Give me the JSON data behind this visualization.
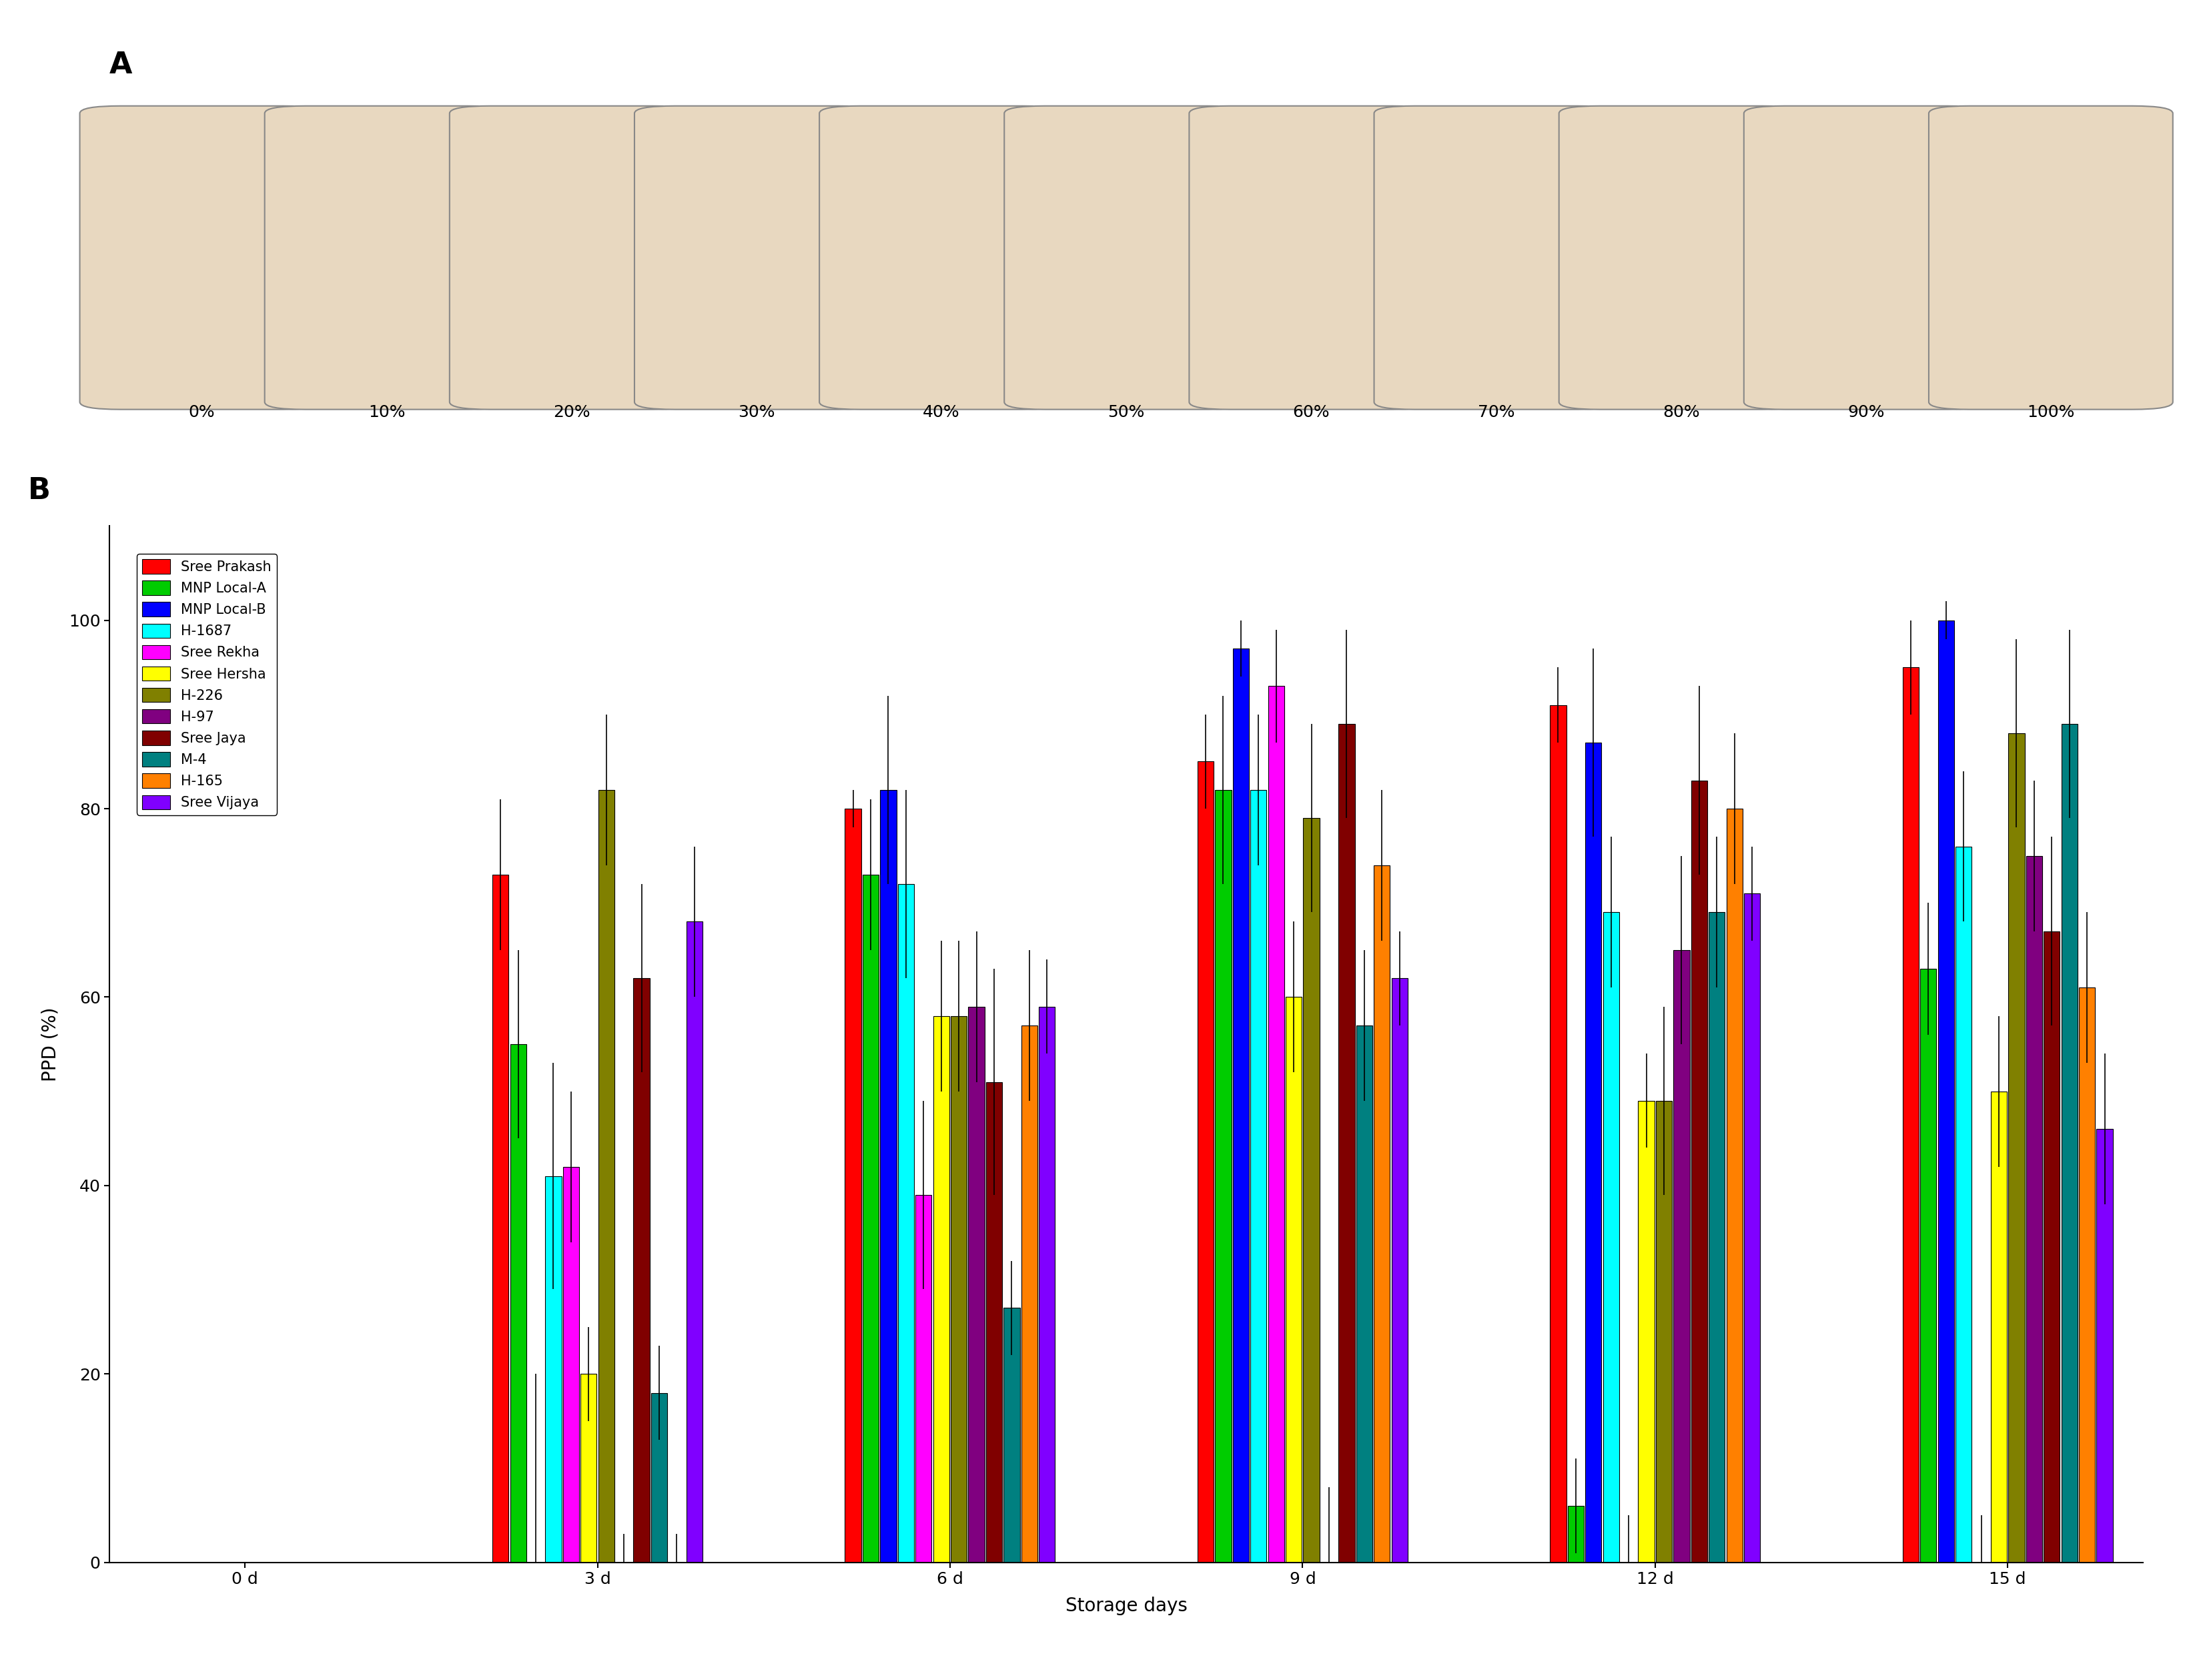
{
  "varieties": [
    "Sree Prakash",
    "MNP Local-A",
    "MNP Local-B",
    "H-1687",
    "Sree Rekha",
    "Sree Hersha",
    "H-226",
    "H-97",
    "Sree Jaya",
    "M-4",
    "H-165",
    "Sree Vijaya"
  ],
  "colors": [
    "#FF0000",
    "#00CC00",
    "#0000FF",
    "#00FFFF",
    "#FF00FF",
    "#FFFF00",
    "#808000",
    "#800080",
    "#800000",
    "#008080",
    "#FF8000",
    "#8000FF"
  ],
  "days": [
    0,
    3,
    6,
    9,
    12,
    15
  ],
  "day_labels": [
    "0 d",
    "3 d",
    "6 d",
    "9 d",
    "12 d",
    "15 d"
  ],
  "ppd_values": {
    "Sree Prakash": [
      0,
      73,
      80,
      85,
      91,
      95
    ],
    "MNP Local-A": [
      0,
      55,
      73,
      82,
      6,
      63
    ],
    "MNP Local-B": [
      0,
      0,
      82,
      97,
      87,
      100
    ],
    "H-1687": [
      0,
      41,
      72,
      82,
      69,
      76
    ],
    "Sree Rekha": [
      0,
      42,
      39,
      93,
      0,
      0
    ],
    "Sree Hersha": [
      0,
      20,
      58,
      60,
      49,
      50
    ],
    "H-226": [
      0,
      82,
      58,
      79,
      49,
      88
    ],
    "H-97": [
      0,
      0,
      59,
      0,
      65,
      75
    ],
    "Sree Jaya": [
      0,
      62,
      51,
      89,
      83,
      67
    ],
    "M-4": [
      0,
      18,
      27,
      57,
      69,
      89
    ],
    "H-165": [
      0,
      0,
      57,
      74,
      80,
      61
    ],
    "Sree Vijaya": [
      0,
      68,
      59,
      62,
      71,
      46
    ]
  },
  "error_values": {
    "Sree Prakash": [
      0,
      8,
      2,
      5,
      4,
      5
    ],
    "MNP Local-A": [
      0,
      10,
      8,
      10,
      5,
      7
    ],
    "MNP Local-B": [
      0,
      20,
      10,
      3,
      10,
      2
    ],
    "H-1687": [
      0,
      12,
      10,
      8,
      8,
      8
    ],
    "Sree Rekha": [
      0,
      8,
      10,
      6,
      5,
      5
    ],
    "Sree Hersha": [
      0,
      5,
      8,
      8,
      5,
      8
    ],
    "H-226": [
      0,
      8,
      8,
      10,
      10,
      10
    ],
    "H-97": [
      0,
      3,
      8,
      8,
      10,
      8
    ],
    "Sree Jaya": [
      0,
      10,
      12,
      10,
      10,
      10
    ],
    "M-4": [
      0,
      5,
      5,
      8,
      8,
      10
    ],
    "H-165": [
      0,
      3,
      8,
      8,
      8,
      8
    ],
    "Sree Vijaya": [
      0,
      8,
      5,
      5,
      5,
      8
    ]
  },
  "ylabel": "PPD (%)",
  "xlabel": "Storage days",
  "ylim": [
    0,
    110
  ],
  "yticks": [
    0,
    20,
    40,
    60,
    80,
    100
  ],
  "panel_a_label": "A",
  "panel_b_label": "B",
  "ppd_percentages": [
    "0%",
    "10%",
    "20%",
    "30%",
    "40%",
    "50%",
    "60%",
    "70%",
    "80%",
    "90%",
    "100%"
  ],
  "background_color": "#FFFFFF",
  "bar_edge_color": "#000000",
  "bar_edge_width": 0.8,
  "title_fontsize": 14,
  "tick_fontsize": 18,
  "label_fontsize": 20,
  "legend_fontsize": 15
}
